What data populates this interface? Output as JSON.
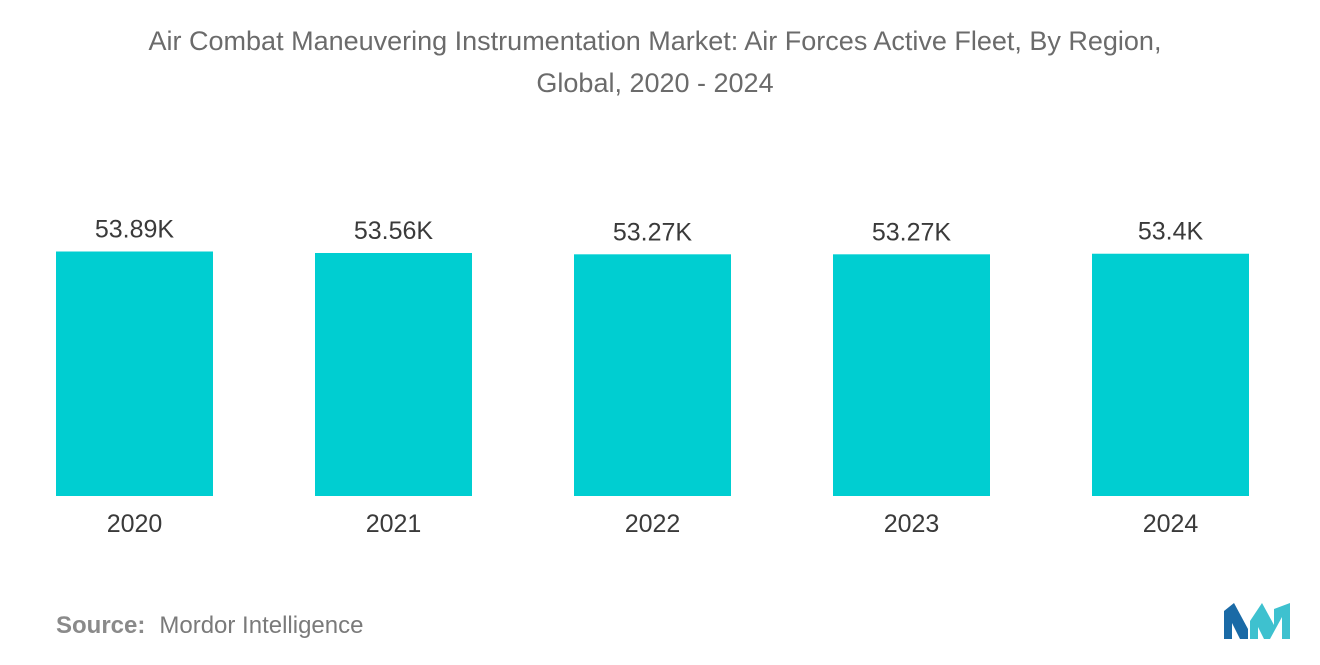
{
  "chart_data": {
    "type": "bar",
    "title_line1": "Air Combat Maneuvering Instrumentation Market: Air Forces Active Fleet, By Region,",
    "title_line2": "Global, 2020 - 2024",
    "categories": [
      "2020",
      "2021",
      "2022",
      "2023",
      "2024"
    ],
    "values": [
      53.89,
      53.56,
      53.27,
      53.27,
      53.4
    ],
    "value_labels": [
      "53.89K",
      "53.56K",
      "53.27K",
      "53.27K",
      "53.4K"
    ],
    "xlabel": "",
    "ylabel": "",
    "ylim": [
      0,
      54
    ],
    "grid": false,
    "legend": "none",
    "bar_color": "#00ced1"
  },
  "source": {
    "label": "Source:",
    "text": "Mordor Intelligence"
  },
  "logo": {
    "icon": "mordor-intelligence-logo-icon",
    "color_left": "#1a6aa6",
    "color_right": "#3ec1cf"
  }
}
